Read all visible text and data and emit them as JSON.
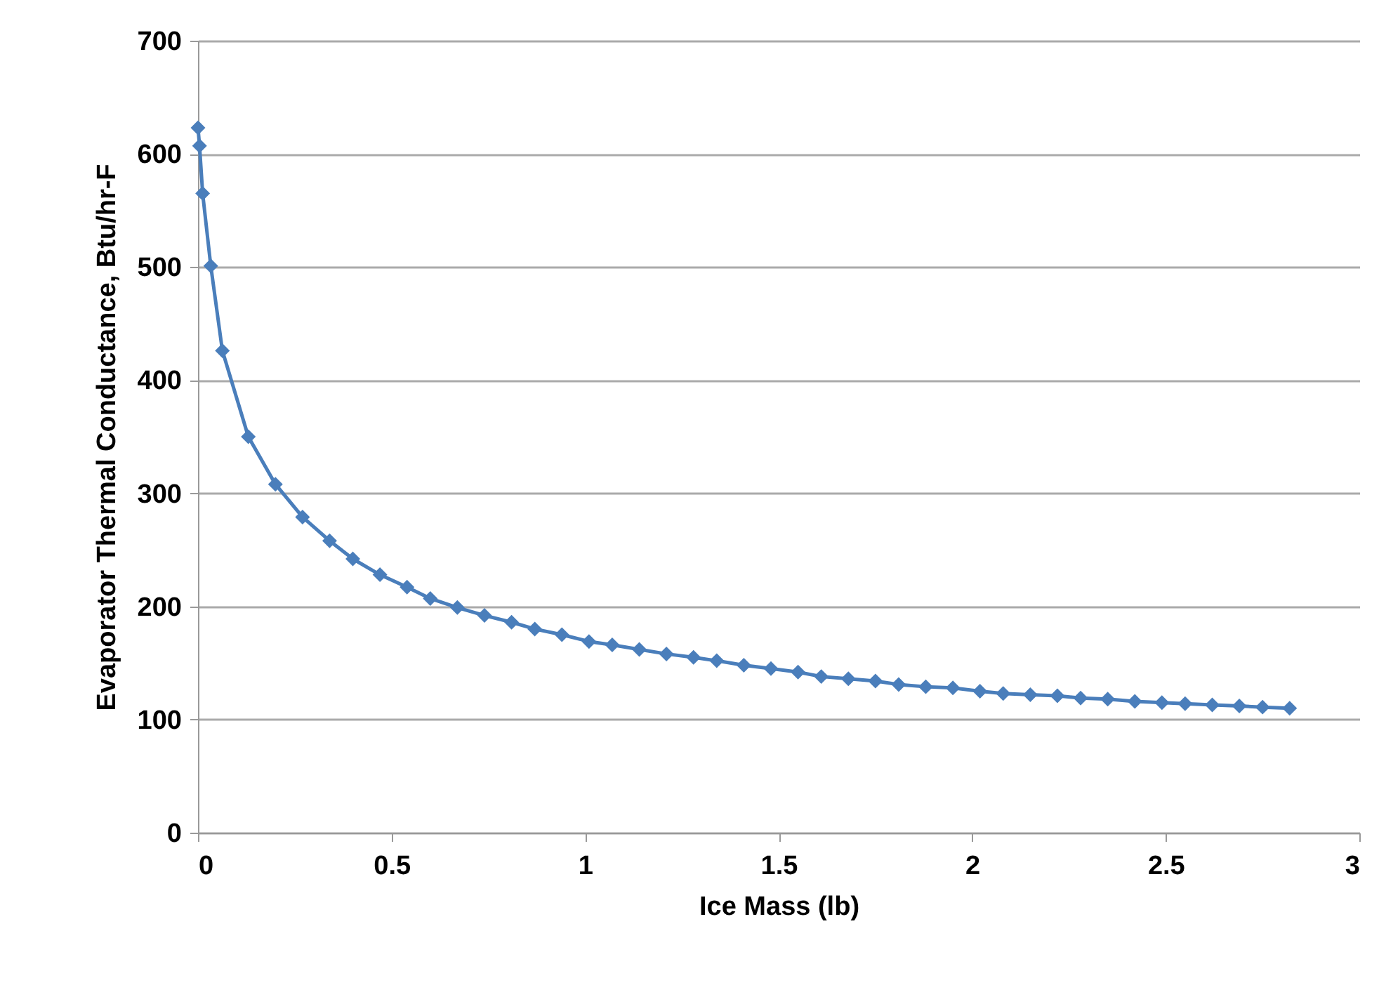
{
  "chart_data": {
    "type": "line",
    "xlabel": "Ice Mass (lb)",
    "ylabel": "Evaporator Thermal Conductance, Btu/hr-F",
    "x": [
      0,
      0.004,
      0.012,
      0.033,
      0.063,
      0.13,
      0.2,
      0.27,
      0.34,
      0.4,
      0.47,
      0.54,
      0.6,
      0.67,
      0.74,
      0.81,
      0.87,
      0.94,
      1.01,
      1.07,
      1.14,
      1.21,
      1.28,
      1.34,
      1.41,
      1.48,
      1.55,
      1.61,
      1.68,
      1.75,
      1.81,
      1.88,
      1.95,
      2.02,
      2.08,
      2.15,
      2.22,
      2.28,
      2.35,
      2.42,
      2.49,
      2.55,
      2.62,
      2.69,
      2.75,
      2.82
    ],
    "series": [
      {
        "color": "#4a7ebb",
        "values": [
          623,
          607,
          565,
          501,
          426,
          350,
          308,
          279,
          258,
          242,
          228,
          217,
          207,
          199,
          192,
          186,
          180,
          175,
          169,
          166,
          162,
          158,
          155,
          152,
          148,
          145,
          142,
          138,
          136,
          134,
          131,
          129,
          128,
          125,
          123,
          122,
          121,
          119,
          118,
          116,
          115,
          114,
          113,
          112,
          111,
          110
        ]
      }
    ],
    "xlim": [
      0,
      3
    ],
    "xticks": [
      0,
      0.5,
      1,
      1.5,
      2,
      2.5,
      3
    ],
    "ylim": [
      0,
      700
    ],
    "yticks": [
      0,
      100,
      200,
      300,
      400,
      500,
      600,
      700
    ],
    "grid": "y",
    "marker": "diamond",
    "line_style": "solid",
    "legend": false
  }
}
